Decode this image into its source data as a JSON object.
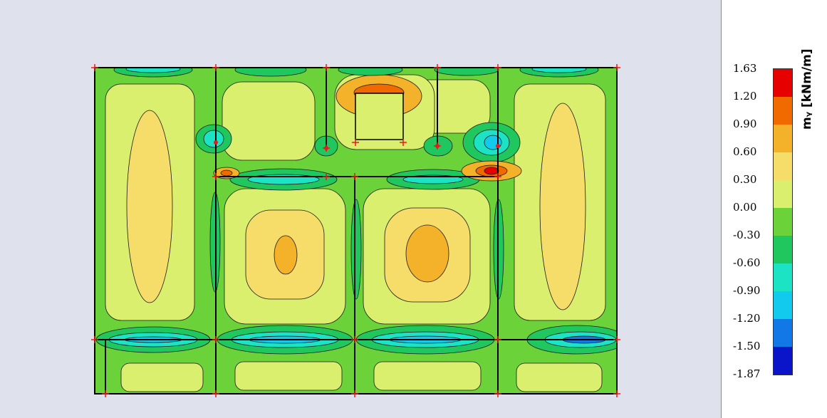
{
  "legend": {
    "title": "mᵧ [kNm/m]",
    "labels": [
      "1.63",
      "1.20",
      "0.90",
      "0.60",
      "0.30",
      "0.00",
      "-0.30",
      "-0.60",
      "-0.90",
      "-1.20",
      "-1.50",
      "-1.87"
    ],
    "band_colors": [
      "#e60000",
      "#f06a00",
      "#f4b22b",
      "#f6dd6a",
      "#dbef6e",
      "#6cd23a",
      "#20c75e",
      "#1ce3c3",
      "#12c9ee",
      "#1278e8",
      "#0a14c8"
    ]
  },
  "colors": {
    "background": "#dfe1ec",
    "base_fill": "#dbef6e",
    "structure_lines": "#000000",
    "support_marks": "#e61a1a"
  }
}
